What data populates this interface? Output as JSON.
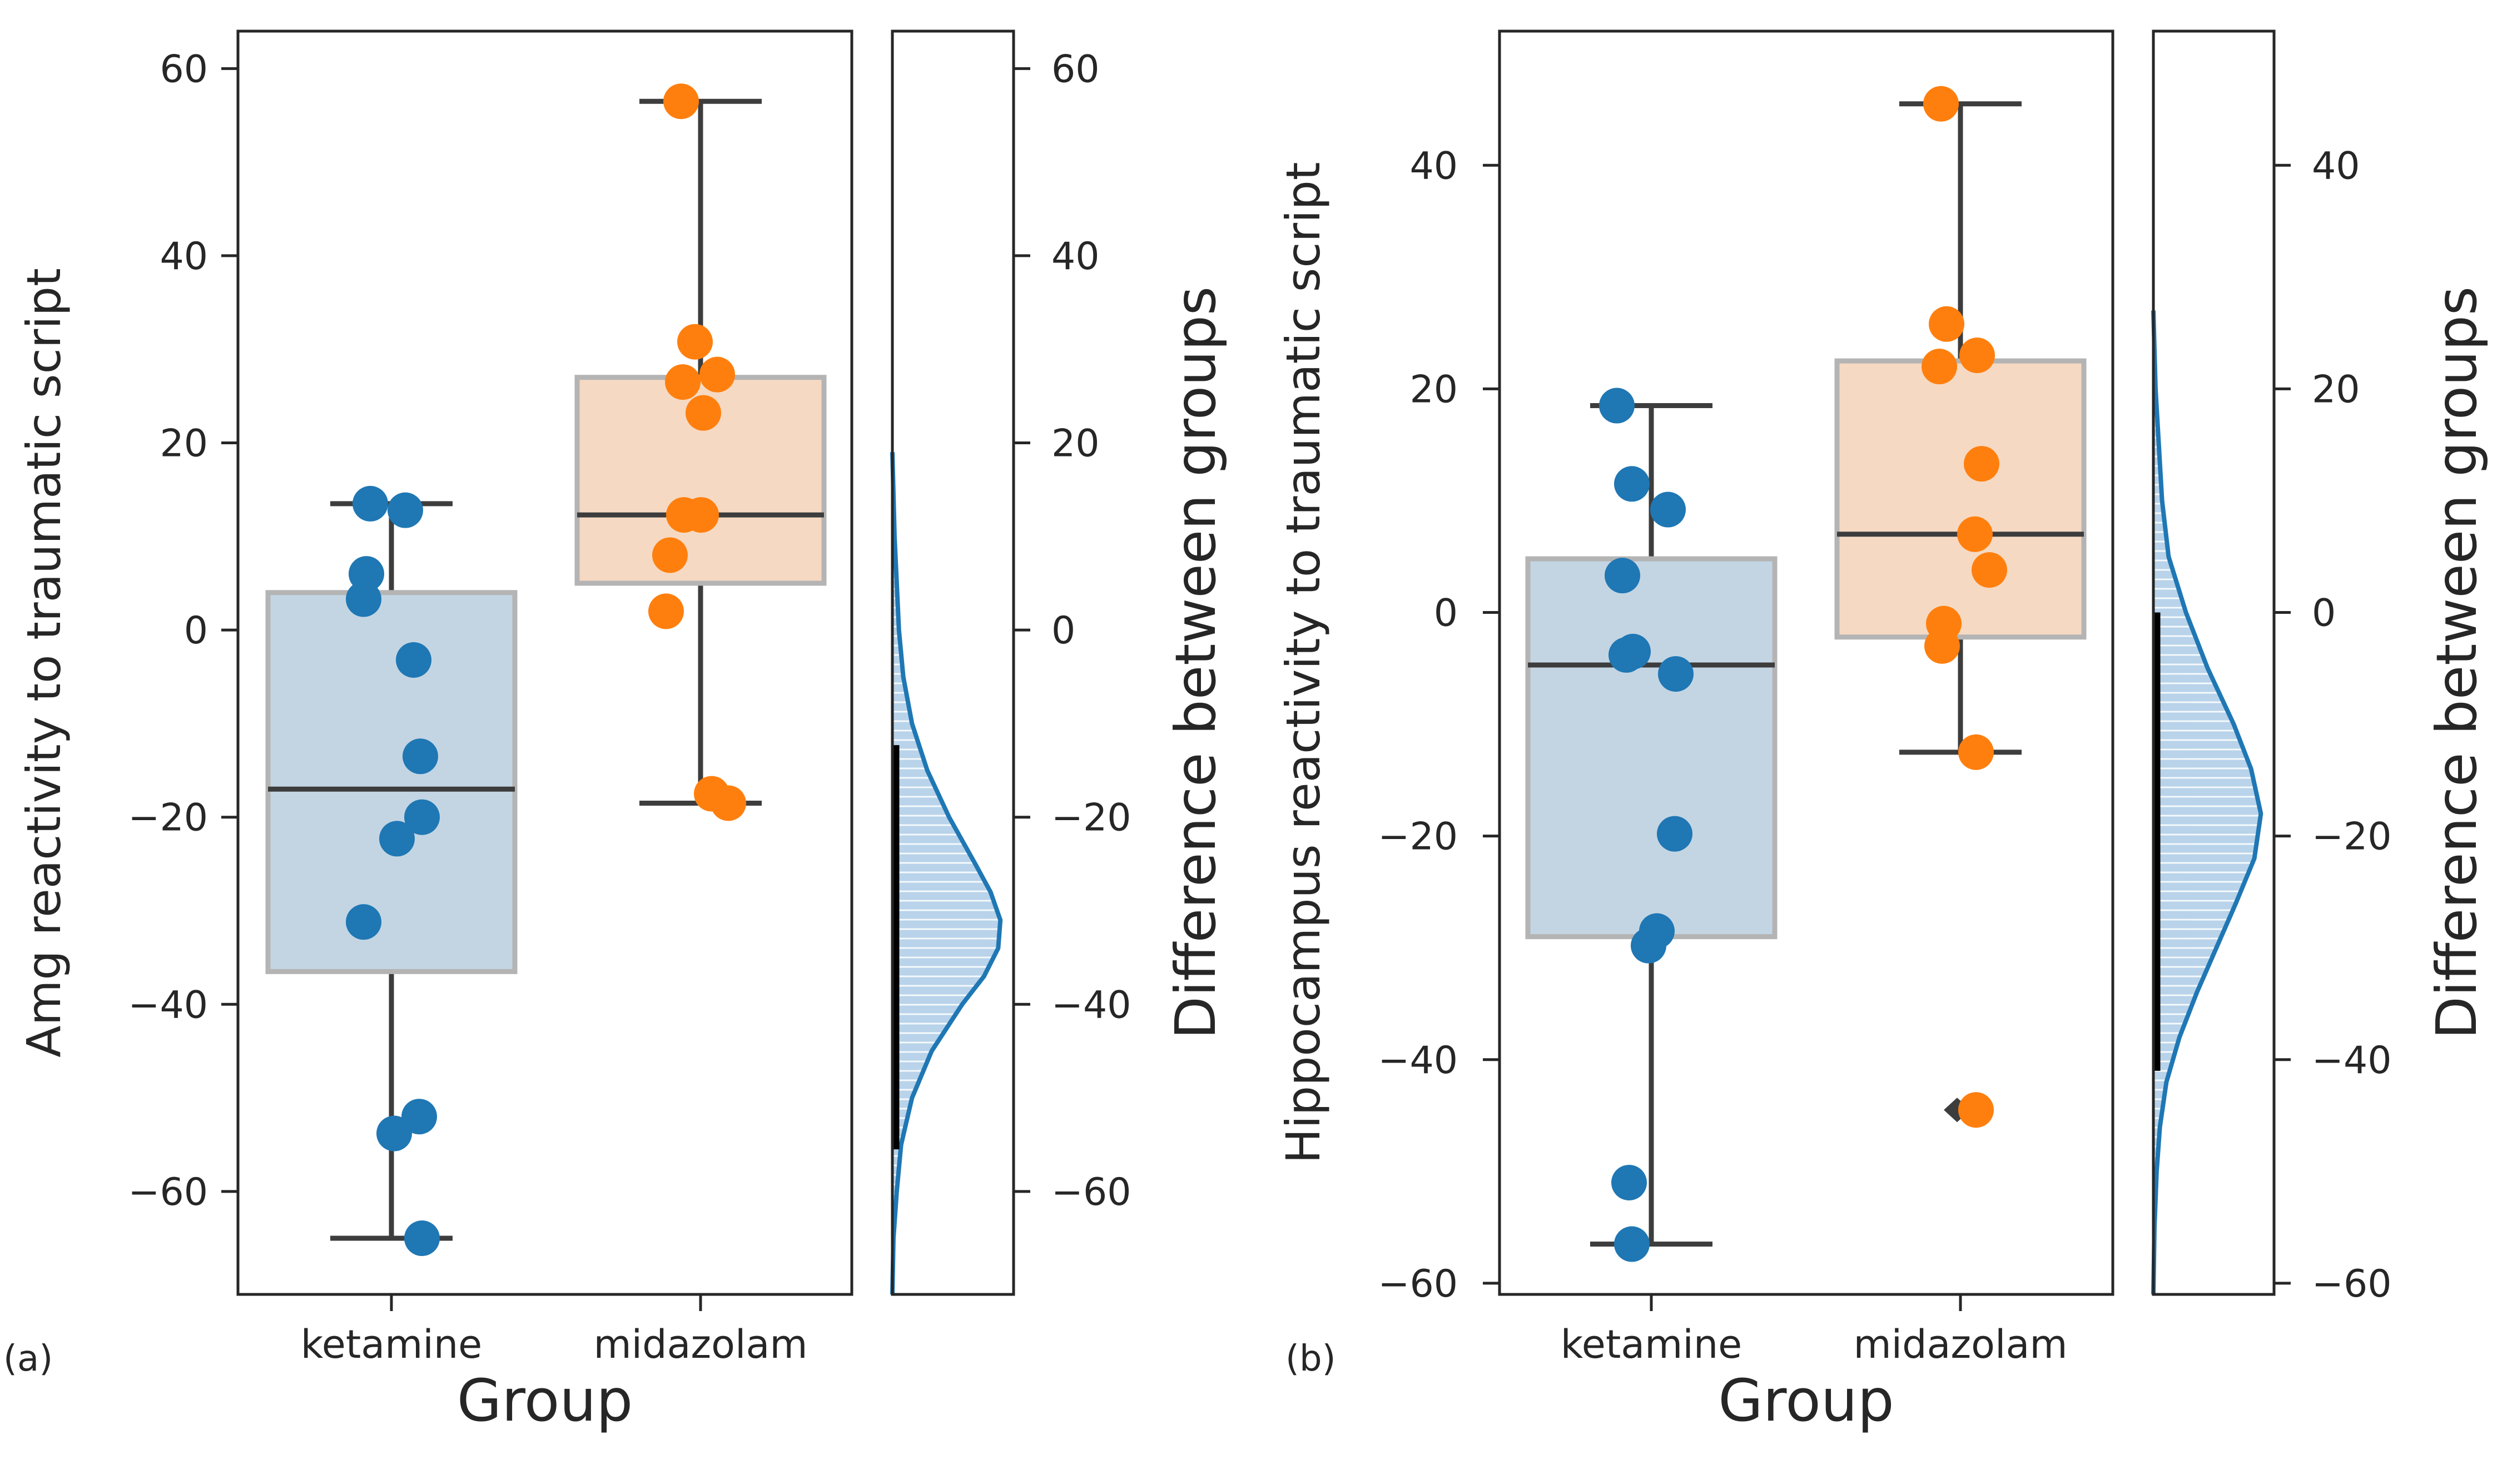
{
  "figure": {
    "panels": [
      {
        "id": "a",
        "label": "(a)"
      },
      {
        "id": "b",
        "label": "(b)"
      }
    ]
  },
  "colors": {
    "ketamine": "#1f77b4",
    "midazolam": "#ff7f0e",
    "ketamine_box": "#c3d5e3",
    "midazolam_box": "#f6d9c2",
    "box_edge": "#b4b4b4",
    "line": "#3d3d3d",
    "axis": "#262626",
    "kde_fill": "#b8d3ea",
    "ci_bar": "#000000"
  },
  "chart_data": [
    {
      "type": "box",
      "panel": "(a)",
      "xlabel": "Group",
      "ylabel": "Amg reactivity to traumatic script",
      "categories": [
        "ketamine",
        "midazolam"
      ],
      "ylim": [
        -71,
        64
      ],
      "yticks": [
        60,
        40,
        20,
        0,
        -20,
        -40,
        -60
      ],
      "grid": false,
      "boxes": [
        {
          "category": "ketamine",
          "whisker_low": -65,
          "q1": -36.5,
          "median": -17,
          "q3": 4,
          "whisker_high": 13.5
        },
        {
          "category": "midazolam",
          "whisker_low": -18.5,
          "q1": 5,
          "median": 12.3,
          "q3": 27,
          "whisker_high": 56.5
        }
      ],
      "points": [
        {
          "category": "ketamine",
          "values": [
            13.5,
            12.8,
            6,
            3.3,
            -3.2,
            -13.5,
            -20,
            -22.3,
            -31.2,
            -52,
            -53.8,
            -65
          ]
        },
        {
          "category": "midazolam",
          "values": [
            56.5,
            30.8,
            27.3,
            26.5,
            23.2,
            12.3,
            12.3,
            8,
            2,
            -17.5,
            -18.5
          ]
        }
      ],
      "difference": {
        "ylabel": "Difference between groups",
        "ylim": [
          -71,
          64
        ],
        "yticks": [
          60,
          40,
          20,
          0,
          -20,
          -40,
          -60
        ],
        "ci": [
          -55.5,
          -12.3
        ],
        "kde_x": [
          19,
          10,
          0,
          -5,
          -10,
          -15,
          -20,
          -25,
          -28,
          -31,
          -34,
          -37,
          -40,
          -45,
          -50,
          -55,
          -60,
          -65,
          -71
        ],
        "kde_density": [
          0.0,
          0.02,
          0.06,
          0.1,
          0.18,
          0.32,
          0.52,
          0.76,
          0.9,
          0.99,
          0.97,
          0.84,
          0.64,
          0.36,
          0.18,
          0.08,
          0.04,
          0.01,
          0.0
        ]
      }
    },
    {
      "type": "box",
      "panel": "(b)",
      "xlabel": "Group",
      "ylabel": "Hippocampus reactivity to traumatic script",
      "categories": [
        "ketamine",
        "midazolam"
      ],
      "ylim": [
        -61,
        52
      ],
      "yticks": [
        40,
        20,
        0,
        -20,
        -40,
        -60
      ],
      "grid": false,
      "boxes": [
        {
          "category": "ketamine",
          "whisker_low": -56.5,
          "q1": -29,
          "median": -4.7,
          "q3": 4.8,
          "whisker_high": 18.5
        },
        {
          "category": "midazolam",
          "whisker_low": -12.5,
          "q1": -2.2,
          "median": 7,
          "q3": 22.5,
          "whisker_high": 45.5
        }
      ],
      "outliers": [
        {
          "category": "midazolam",
          "value": -44.5
        }
      ],
      "points": [
        {
          "category": "ketamine",
          "values": [
            18.5,
            11.5,
            9.2,
            3.3,
            -3.5,
            -3.8,
            -5.5,
            -19.8,
            -28.5,
            -29.8,
            -51,
            -56.5
          ]
        },
        {
          "category": "midazolam",
          "values": [
            45.5,
            25.8,
            23,
            22,
            13.3,
            7,
            3.8,
            -1,
            -3,
            -12.5,
            -44.5
          ]
        }
      ],
      "difference": {
        "ylabel": "Difference between groups",
        "ylim": [
          -61,
          52
        ],
        "yticks": [
          40,
          20,
          0,
          -20,
          -40,
          -60
        ],
        "ci": [
          -41,
          0
        ],
        "kde_x": [
          27,
          20,
          10,
          5,
          0,
          -5,
          -10,
          -14,
          -18,
          -22,
          -26,
          -30,
          -34,
          -38,
          -42,
          -46,
          -50,
          -55,
          -61
        ],
        "kde_density": [
          0.0,
          0.02,
          0.08,
          0.14,
          0.3,
          0.5,
          0.74,
          0.9,
          0.99,
          0.93,
          0.76,
          0.58,
          0.4,
          0.24,
          0.12,
          0.06,
          0.03,
          0.01,
          0.0
        ]
      }
    }
  ]
}
